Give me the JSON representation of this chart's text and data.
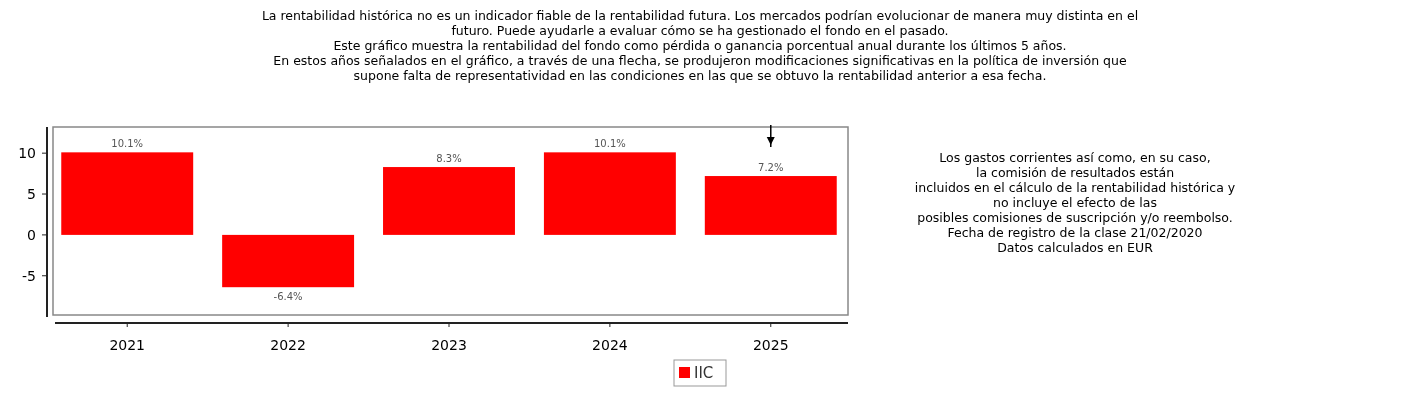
{
  "chart_data": {
    "type": "bar",
    "title": "La rentabilidad histórica no es un indicador fiable de la rentabilidad futura. Los mercados podrían evolucionar de manera muy distinta en el\nfuturo. Puede ayudarle a evaluar cómo se ha gestionado el fondo en el pasado.\nEste gráfico muestra la rentabilidad del fondo como pérdida o ganancia porcentual anual durante los últimos 5 años.\nEn estos años señalados en el gráfico, a través de una flecha, se produjeron modificaciones significativas en la política de inversión que\nsupone falta de representatividad en las condiciones en las que se obtuvo la rentabilidad anterior a esa fecha.",
    "annotations": [
      "Los gastos corrientes así como, en su caso,\nla comisión de resultados están\nincluidos en el cálculo de la rentabilidad histórica y\nno incluye el efecto de las\nposibles comisiones de suscripción y/o reembolso.\nFecha de registro de la clase 21/02/2020\nDatos calculados en EUR"
    ],
    "categories": [
      "2021",
      "2022",
      "2023",
      "2024",
      "2025"
    ],
    "series": [
      {
        "name": "IIC",
        "color": "#ff0000",
        "values": [
          10.1,
          -6.4,
          8.3,
          10.1,
          7.2
        ],
        "value_labels": [
          "10.1%",
          "-6.4%",
          "8.3%",
          "10.1%",
          "7.2%"
        ]
      }
    ],
    "ylim": [
      -9.8,
      13.2
    ],
    "yticks": [
      -5,
      0,
      5,
      10
    ],
    "legend": "bottom"
  }
}
